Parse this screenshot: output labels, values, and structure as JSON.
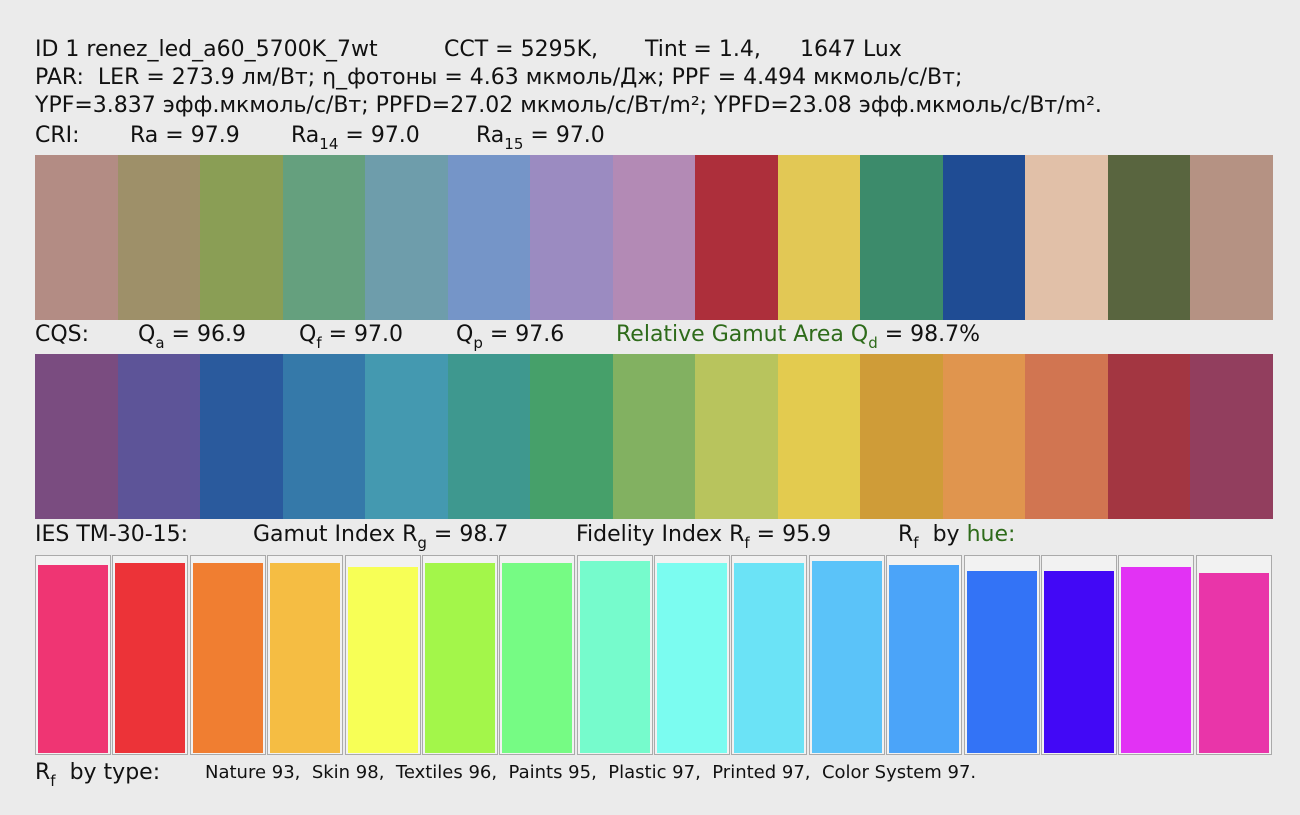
{
  "header": {
    "id": "ID 1 renez_led_a60_5700K_7wt",
    "cct": "CCT = 5295K,",
    "tint": "Tint = 1.4,",
    "lux": "1647 Lux"
  },
  "par": {
    "line1": "PAR:  LER = 273.9 лм/Вт; η_фотоны = 4.63 мкмоль/Дж; PPF = 4.494 мкмоль/с/Вт;",
    "line2": "YPF=3.837 эфф.мкмоль/с/Вт; PPFD=27.02 мкмоль/с/Вт/m²; YPFD=23.08 эфф.мкмоль/с/Вт/m²."
  },
  "cri": {
    "label": "CRI:",
    "ra": "Ra = 97.9",
    "ra14": {
      "base": "Ra",
      "sub": "14",
      "value": "= 97.0"
    },
    "ra15": {
      "base": "Ra",
      "sub": "15",
      "value": "= 97.0"
    },
    "swatches": [
      "#b38c84",
      "#9e9069",
      "#8a9e55",
      "#65a07e",
      "#6e9dab",
      "#7595c8",
      "#9b8bc1",
      "#b38ab5",
      "#ad2f3b",
      "#e2c855",
      "#3c8b6b",
      "#1f4c94",
      "#e1c0a8",
      "#59653f",
      "#b59283"
    ]
  },
  "cqs": {
    "label": "CQS:",
    "qa": {
      "base": "Q",
      "sub": "a",
      "value": "= 96.9"
    },
    "qf": {
      "base": "Q",
      "sub": "f",
      "value": "= 97.0"
    },
    "qp": {
      "base": "Q",
      "sub": "p",
      "value": "= 97.6"
    },
    "qd": {
      "base": "Relative Gamut Area Q",
      "sub": "d",
      "value": "= 98.7%"
    },
    "swatches": [
      "#7a4c80",
      "#5d5498",
      "#2a5a9d",
      "#3579a9",
      "#4499b0",
      "#3e988f",
      "#46a06a",
      "#82b161",
      "#b8c45d",
      "#e3cb4f",
      "#cf9c38",
      "#e0954e",
      "#d17551",
      "#a33641",
      "#923e5e"
    ]
  },
  "tm30": {
    "label": "IES TM-30-15:",
    "rg": {
      "base": "Gamut Index R",
      "sub": "g",
      "value": "= 98.7"
    },
    "rf": {
      "base": "Fidelity Index R",
      "sub": "f",
      "value": "= 95.9"
    },
    "by_hue": {
      "base": "R",
      "sub": "f",
      "by": "by",
      "hue": "hue:"
    }
  },
  "hue_bars": {
    "ylim": [
      0,
      100
    ],
    "values": [
      96,
      97,
      97,
      97,
      95,
      97,
      97,
      98,
      97,
      97,
      98,
      96,
      93,
      93,
      95,
      92
    ],
    "colors": [
      "#ef3573",
      "#ec3338",
      "#f07e31",
      "#f5bd43",
      "#f7ff56",
      "#a3f64a",
      "#76fb84",
      "#76fbcc",
      "#7bfcf0",
      "#6be3f6",
      "#5bc3f9",
      "#4ba4f9",
      "#3373f6",
      "#4208f6",
      "#e232f4",
      "#e935a9"
    ]
  },
  "by_type": {
    "base": "R",
    "sub": "f",
    "label": "by type:",
    "values": "Nature 93,  Skin 98,  Textiles 96,  Paints 95,  Plastic 97,  Printed 97,  Color System 97."
  }
}
